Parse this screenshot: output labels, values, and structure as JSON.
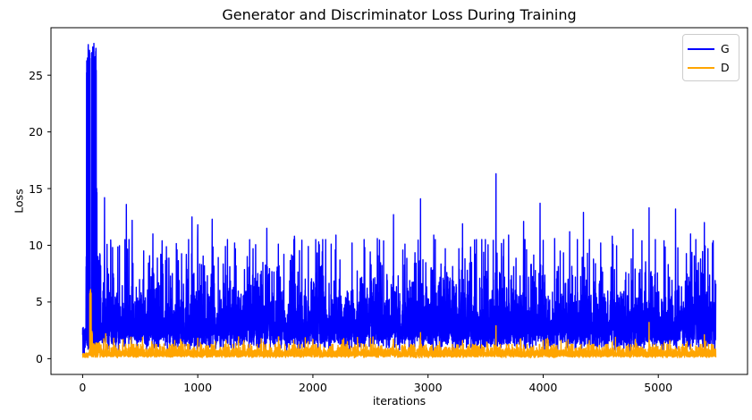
{
  "figure": {
    "background": "#ffffff"
  },
  "chart_data": {
    "type": "line",
    "title": "Generator and Discriminator Loss During Training",
    "xlabel": "iterations",
    "ylabel": "Loss",
    "xticks": [
      0,
      1000,
      2000,
      3000,
      4000,
      5000
    ],
    "yticks": [
      0,
      5,
      10,
      15,
      20,
      25
    ],
    "xlim": [
      -275,
      5775
    ],
    "ylim": [
      -1.39,
      29.19
    ],
    "n_iterations": 5500,
    "grid": false,
    "legend_loc": "upper right",
    "axis_color": "#000000",
    "seed": 42,
    "series": [
      {
        "name": "G",
        "color": "#0000ff",
        "summary": "Generator loss: initial double spike to ~27.8 within first ~120 iterations, then dense noisy band between ~0.5 and ~8 with frequent spikes of 9-16 for the rest of training",
        "y_max": 27.8,
        "baseline": {
          "median": 2.8,
          "sigma": 0.5,
          "min": 0.3,
          "max": 10.5
        },
        "spikes": {
          "prob": 0.02,
          "min": 6.5,
          "max": 10.5
        },
        "transient": [
          [
            0,
            30,
            "band",
            0.4,
            2.8
          ],
          [
            30,
            34,
            "fill",
            1.5,
            9
          ],
          [
            34,
            65,
            "fill",
            1.0,
            27.7
          ],
          [
            65,
            77,
            "band",
            0.8,
            1.6
          ],
          [
            77,
            119,
            "fill",
            1.2,
            27.8
          ],
          [
            119,
            126,
            "fill",
            1.5,
            15
          ],
          [
            126,
            140,
            "fill",
            0.8,
            9
          ]
        ],
        "peaks": [
          [
            190,
            14.2
          ],
          [
            260,
            9.8
          ],
          [
            380,
            13.6
          ],
          [
            430,
            12.2
          ],
          [
            530,
            9.5
          ],
          [
            610,
            11.0
          ],
          [
            690,
            10.4
          ],
          [
            820,
            9.6
          ],
          [
            950,
            12.5
          ],
          [
            1000,
            11.8
          ],
          [
            1125,
            12.3
          ],
          [
            1240,
            9.9
          ],
          [
            1320,
            10.2
          ],
          [
            1480,
            9.7
          ],
          [
            1600,
            11.5
          ],
          [
            1700,
            10.1
          ],
          [
            1840,
            10.8
          ],
          [
            1960,
            9.9
          ],
          [
            2050,
            10.3
          ],
          [
            2200,
            10.9
          ],
          [
            2340,
            10.2
          ],
          [
            2450,
            9.8
          ],
          [
            2560,
            10.6
          ],
          [
            2700,
            12.7
          ],
          [
            2800,
            10.1
          ],
          [
            2935,
            14.1
          ],
          [
            3050,
            10.9
          ],
          [
            3150,
            9.7
          ],
          [
            3300,
            11.9
          ],
          [
            3420,
            10.5
          ],
          [
            3590,
            16.3
          ],
          [
            3700,
            10.9
          ],
          [
            3830,
            12.1
          ],
          [
            3973,
            13.7
          ],
          [
            4100,
            10.6
          ],
          [
            4230,
            11.2
          ],
          [
            4350,
            12.9
          ],
          [
            4500,
            10.2
          ],
          [
            4600,
            10.8
          ],
          [
            4780,
            11.4
          ],
          [
            4920,
            13.3
          ],
          [
            5050,
            10.4
          ],
          [
            5150,
            13.2
          ],
          [
            5280,
            11.0
          ],
          [
            5400,
            12.0
          ],
          [
            5470,
            9.8
          ]
        ]
      },
      {
        "name": "D",
        "color": "#ffa500",
        "summary": "Discriminator loss: low band between ~0.05 and ~1.2 throughout, early spike to ~6.1 around iteration 65, occasional spikes to 1.5-3.2",
        "y_max": 6.1,
        "baseline": {
          "median": 0.42,
          "sigma": 0.55,
          "min": 0.03,
          "max": 1.25
        },
        "spikes": {
          "prob": 0.008,
          "min": 1.1,
          "max": 2.0
        },
        "transient": [
          [
            0,
            55,
            "band",
            0.08,
            0.5
          ],
          [
            55,
            62,
            "band",
            0.2,
            0.8
          ],
          [
            62,
            76,
            "fill",
            0.3,
            6.1
          ],
          [
            76,
            86,
            "fill",
            0.2,
            2.4
          ],
          [
            86,
            160,
            "band",
            0.12,
            1.4
          ]
        ],
        "peaks": [
          [
            200,
            2.2
          ],
          [
            270,
            1.8
          ],
          [
            350,
            1.7
          ],
          [
            420,
            1.9
          ],
          [
            600,
            1.5
          ],
          [
            800,
            1.6
          ],
          [
            1000,
            1.8
          ],
          [
            1150,
            1.5
          ],
          [
            1400,
            1.6
          ],
          [
            1700,
            1.5
          ],
          [
            2000,
            1.7
          ],
          [
            2300,
            1.5
          ],
          [
            2500,
            1.8
          ],
          [
            2700,
            1.6
          ],
          [
            2935,
            2.3
          ],
          [
            3100,
            1.5
          ],
          [
            3300,
            1.6
          ],
          [
            3590,
            2.9
          ],
          [
            3800,
            1.7
          ],
          [
            4000,
            1.6
          ],
          [
            4200,
            1.5
          ],
          [
            4400,
            1.6
          ],
          [
            4600,
            1.5
          ],
          [
            4800,
            1.7
          ],
          [
            4920,
            3.2
          ],
          [
            5100,
            1.6
          ],
          [
            5250,
            1.5
          ],
          [
            5400,
            2.1
          ]
        ]
      }
    ]
  }
}
